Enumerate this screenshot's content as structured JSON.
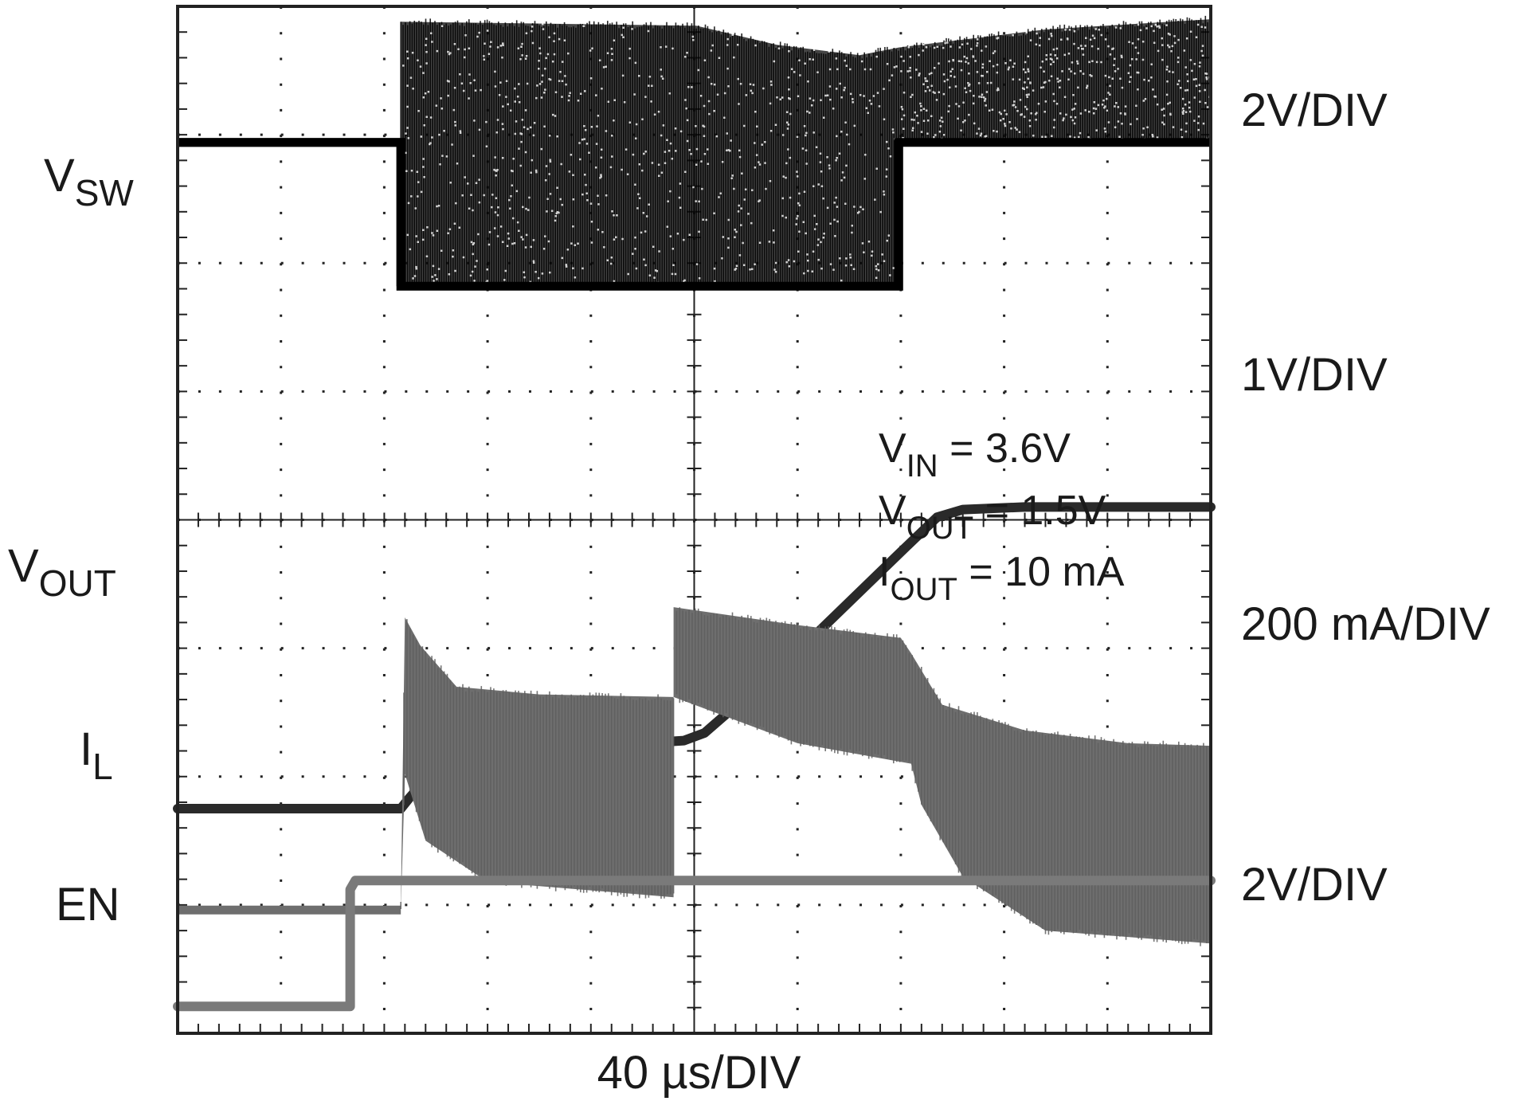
{
  "chart_data": {
    "type": "line",
    "title": "",
    "xlabel": "40 µs/DIV",
    "x_divisions": 10,
    "y_divisions": 8,
    "x_unit": "div",
    "grid": true,
    "series": [
      {
        "name": "VSW",
        "label_main": "V",
        "label_sub": "SW",
        "scale": "2V/DIV",
        "color": "#111111",
        "style": "switching",
        "baseline": [
          [
            0,
            6.94
          ],
          [
            2.16,
            6.94
          ],
          [
            2.16,
            5.82
          ],
          [
            5.02,
            5.82
          ],
          [
            6.98,
            5.82
          ],
          [
            6.98,
            6.94
          ],
          [
            10,
            6.94
          ]
        ],
        "envelope_top": [
          [
            2.16,
            7.88
          ],
          [
            5.02,
            7.85
          ],
          [
            5.8,
            7.7
          ],
          [
            6.6,
            7.62
          ],
          [
            6.98,
            7.68
          ],
          [
            8.4,
            7.82
          ],
          [
            10,
            7.9
          ]
        ],
        "envelope_bottom": [
          [
            2.16,
            5.82
          ],
          [
            6.98,
            5.82
          ],
          [
            6.98,
            6.94
          ],
          [
            10,
            6.94
          ]
        ]
      },
      {
        "name": "VOUT",
        "label_main": "V",
        "label_sub": "OUT",
        "scale": "1V/DIV",
        "color": "#2a2a2a",
        "style": "line",
        "x": [
          0,
          2.16,
          2.24,
          2.35,
          2.5,
          2.75,
          3.0,
          3.5,
          4.0,
          4.5,
          4.9,
          5.1,
          6.0,
          7.0,
          7.35,
          7.6,
          8.2,
          9.0,
          10
        ],
        "y": [
          1.75,
          1.75,
          1.83,
          1.93,
          2.01,
          2.1,
          2.16,
          2.2,
          2.23,
          2.26,
          2.28,
          2.34,
          2.97,
          3.75,
          4.02,
          4.08,
          4.1,
          4.1,
          4.1
        ]
      },
      {
        "name": "IL",
        "label_main": "I",
        "label_sub": "L",
        "scale": "200 mA/DIV",
        "color": "#6e6e6e",
        "style": "current",
        "baseline": [
          [
            0,
            0.96
          ],
          [
            2.16,
            0.96
          ],
          [
            2.16,
            0.96
          ]
        ],
        "envelope_top": [
          [
            2.16,
            1.0
          ],
          [
            2.2,
            3.24
          ],
          [
            2.35,
            3.02
          ],
          [
            2.7,
            2.7
          ],
          [
            3.5,
            2.64
          ],
          [
            4.8,
            2.62
          ],
          [
            4.8,
            3.32
          ],
          [
            6.0,
            3.18
          ],
          [
            7.0,
            3.08
          ],
          [
            7.1,
            2.96
          ],
          [
            7.4,
            2.56
          ],
          [
            8.2,
            2.36
          ],
          [
            9.2,
            2.26
          ],
          [
            10,
            2.24
          ]
        ],
        "envelope_bottom": [
          [
            2.16,
            0.96
          ],
          [
            2.2,
            2.02
          ],
          [
            2.4,
            1.5
          ],
          [
            3.0,
            1.18
          ],
          [
            4.8,
            1.06
          ],
          [
            4.8,
            2.62
          ],
          [
            6.0,
            2.26
          ],
          [
            7.1,
            2.1
          ],
          [
            7.2,
            1.78
          ],
          [
            7.6,
            1.22
          ],
          [
            8.4,
            0.8
          ],
          [
            10,
            0.7
          ]
        ]
      },
      {
        "name": "EN",
        "label_main": "EN",
        "label_sub": "",
        "scale": "2V/DIV",
        "color": "#7a7a7a",
        "style": "line",
        "x": [
          0,
          1.67,
          1.67,
          1.72,
          10
        ],
        "y": [
          0.21,
          0.21,
          1.12,
          1.19,
          1.19
        ]
      }
    ],
    "annotations": [
      {
        "main": "V",
        "sub": "IN",
        "rest": " = 3.6V"
      },
      {
        "main": "V",
        "sub": "OUT",
        "rest": " = 1.5V"
      },
      {
        "main": "I",
        "sub": "OUT",
        "rest": " = 10 mA"
      }
    ]
  }
}
